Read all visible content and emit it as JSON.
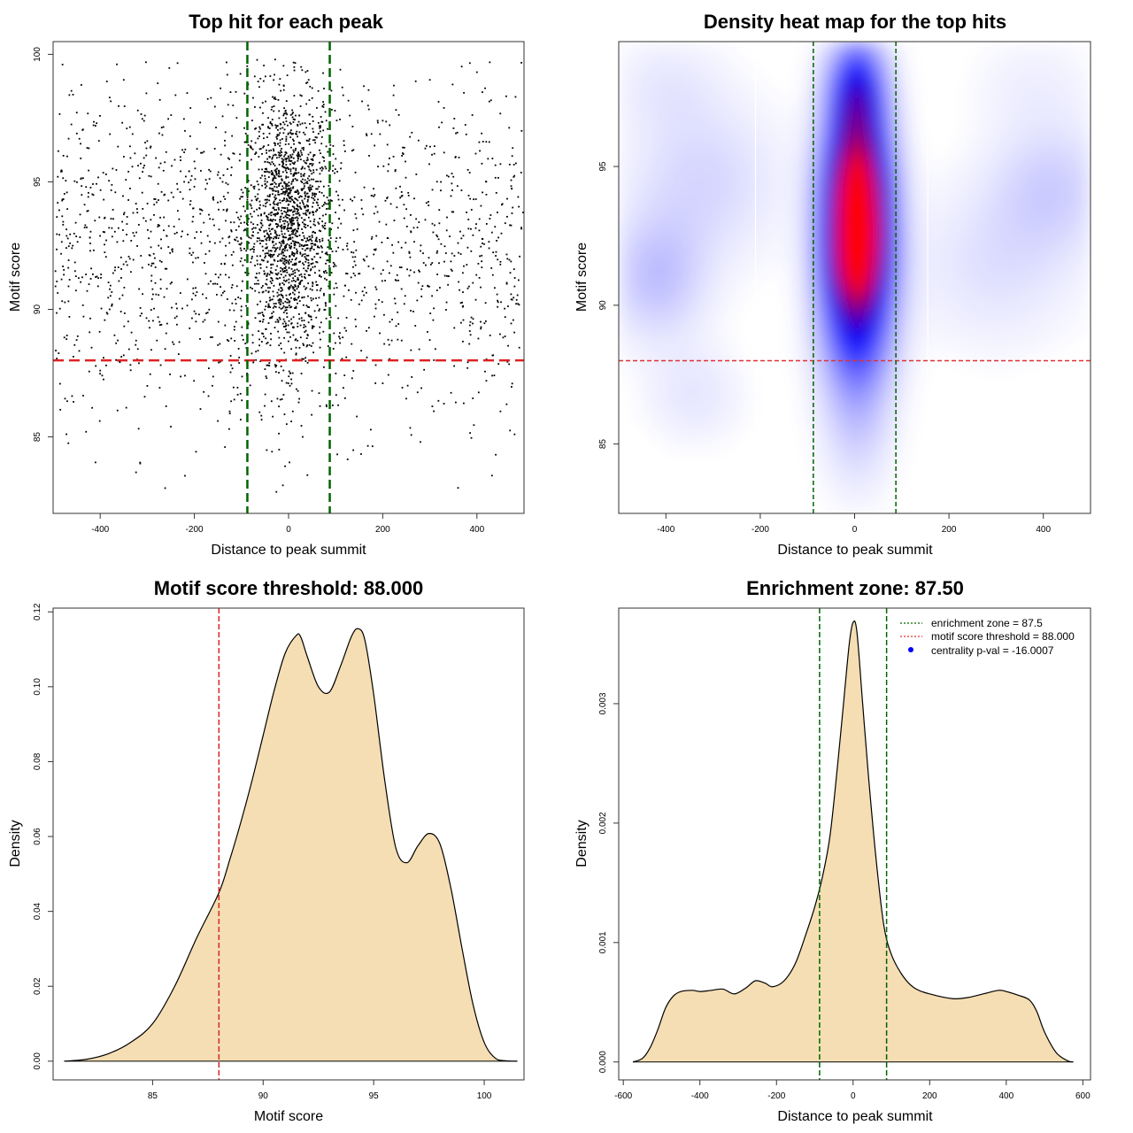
{
  "chart_data": [
    {
      "id": "scatter",
      "type": "scatter",
      "title": "Top hit for each peak",
      "xlabel": "Distance to peak summit",
      "ylabel": "Motif score",
      "xlim": [
        -500,
        500
      ],
      "ylim": [
        82,
        100.5
      ],
      "xticks": [
        -400,
        -200,
        0,
        200,
        400
      ],
      "yticks": [
        85,
        90,
        95,
        100
      ],
      "xtick_labels": [
        "-400",
        "-200",
        "0",
        "200",
        "400"
      ],
      "ytick_labels": [
        "85",
        "90",
        "95",
        "100"
      ],
      "threshold_y": 88,
      "zone_x": [
        -87.5,
        87.5
      ],
      "colors": {
        "points": "#000000",
        "threshold": "#dd2222",
        "zone": "#006400"
      },
      "point_density_note_free": true,
      "points_sampled": [
        [
          12,
          99.5
        ],
        [
          -30,
          99.2
        ],
        [
          40,
          98.9
        ],
        [
          -10,
          98.6
        ],
        [
          25,
          98.4
        ],
        [
          -55,
          98.1
        ],
        [
          60,
          97.9
        ],
        [
          -5,
          97.7
        ],
        [
          15,
          97.6
        ],
        [
          -20,
          97.5
        ],
        [
          35,
          97.3
        ],
        [
          -40,
          97.1
        ],
        [
          5,
          96.9
        ],
        [
          -65,
          96.7
        ],
        [
          70,
          96.5
        ],
        [
          -15,
          96.3
        ],
        [
          20,
          96.1
        ],
        [
          -35,
          95.9
        ],
        [
          45,
          95.7
        ],
        [
          0,
          95.5
        ],
        [
          -25,
          95.3
        ],
        [
          30,
          95.1
        ],
        [
          -50,
          94.9
        ],
        [
          10,
          94.8
        ],
        [
          -8,
          94.6
        ],
        [
          55,
          94.5
        ],
        [
          -45,
          94.3
        ],
        [
          18,
          94.1
        ],
        [
          -2,
          93.9
        ],
        [
          38,
          93.7
        ],
        [
          -28,
          93.5
        ],
        [
          8,
          93.3
        ],
        [
          -60,
          93.1
        ],
        [
          50,
          92.9
        ],
        [
          -12,
          92.7
        ],
        [
          28,
          92.5
        ],
        [
          -38,
          92.3
        ],
        [
          3,
          92.1
        ],
        [
          -18,
          91.9
        ],
        [
          42,
          91.7
        ],
        [
          -52,
          91.5
        ],
        [
          14,
          91.3
        ],
        [
          -6,
          91.1
        ],
        [
          33,
          90.9
        ],
        [
          -42,
          90.7
        ],
        [
          22,
          90.5
        ],
        [
          -16,
          90.3
        ],
        [
          6,
          90.1
        ],
        [
          -32,
          89.9
        ],
        [
          48,
          89.7
        ],
        [
          -22,
          89.5
        ],
        [
          11,
          89.3
        ],
        [
          -3,
          89.1
        ],
        [
          26,
          88.9
        ],
        [
          -44,
          88.7
        ],
        [
          16,
          88.5
        ],
        [
          -9,
          88.3
        ],
        [
          36,
          88.1
        ],
        [
          -26,
          87.8
        ],
        [
          4,
          87.5
        ],
        [
          -14,
          87.2
        ],
        [
          20,
          86.8
        ],
        [
          -36,
          86.4
        ],
        [
          9,
          86.0
        ],
        [
          -4,
          85.5
        ],
        [
          30,
          85.0
        ],
        [
          -20,
          84.5
        ],
        [
          2,
          84.0
        ],
        [
          40,
          83.5
        ],
        [
          -12,
          83.1
        ],
        [
          -480,
          99.6
        ],
        [
          -440,
          98.8
        ],
        [
          -410,
          97.2
        ],
        [
          -470,
          96.0
        ],
        [
          -430,
          94.8
        ],
        [
          -390,
          93.6
        ],
        [
          -460,
          92.4
        ],
        [
          -420,
          91.2
        ],
        [
          -380,
          90.0
        ],
        [
          -450,
          88.8
        ],
        [
          -400,
          87.6
        ],
        [
          -470,
          86.4
        ],
        [
          -430,
          85.2
        ],
        [
          -410,
          84.0
        ],
        [
          -350,
          99.0
        ],
        [
          -320,
          97.8
        ],
        [
          -300,
          96.6
        ],
        [
          -340,
          95.4
        ],
        [
          -280,
          94.2
        ],
        [
          -330,
          93.0
        ],
        [
          -290,
          91.8
        ],
        [
          -310,
          90.6
        ],
        [
          -270,
          89.4
        ],
        [
          -350,
          88.2
        ],
        [
          -300,
          87.0
        ],
        [
          -260,
          86.2
        ],
        [
          -240,
          98.4
        ],
        [
          -220,
          97.0
        ],
        [
          -200,
          95.8
        ],
        [
          -230,
          94.6
        ],
        [
          -180,
          93.4
        ],
        [
          -210,
          92.2
        ],
        [
          -160,
          91.0
        ],
        [
          -190,
          89.8
        ],
        [
          -150,
          88.6
        ],
        [
          -220,
          87.4
        ],
        [
          -170,
          86.6
        ],
        [
          -250,
          85.4
        ],
        [
          -130,
          99.2
        ],
        [
          -120,
          96.8
        ],
        [
          -140,
          95.0
        ],
        [
          -110,
          93.8
        ],
        [
          -100,
          92.6
        ],
        [
          -130,
          90.4
        ],
        [
          -115,
          89.2
        ],
        [
          -105,
          87.9
        ],
        [
          -125,
          86.0
        ],
        [
          -135,
          84.6
        ],
        [
          110,
          99.4
        ],
        [
          130,
          97.6
        ],
        [
          120,
          96.2
        ],
        [
          140,
          94.4
        ],
        [
          105,
          93.2
        ],
        [
          125,
          91.4
        ],
        [
          150,
          90.2
        ],
        [
          115,
          88.9
        ],
        [
          135,
          87.3
        ],
        [
          145,
          85.8
        ],
        [
          170,
          98.6
        ],
        [
          200,
          97.4
        ],
        [
          190,
          95.6
        ],
        [
          230,
          94.0
        ],
        [
          210,
          92.8
        ],
        [
          180,
          91.6
        ],
        [
          240,
          90.8
        ],
        [
          220,
          89.6
        ],
        [
          260,
          88.4
        ],
        [
          200,
          87.1
        ],
        [
          250,
          86.5
        ],
        [
          280,
          84.8
        ],
        [
          300,
          99.0
        ],
        [
          330,
          97.9
        ],
        [
          310,
          96.4
        ],
        [
          350,
          95.2
        ],
        [
          320,
          93.9
        ],
        [
          360,
          92.6
        ],
        [
          340,
          91.3
        ],
        [
          370,
          90.1
        ],
        [
          300,
          88.8
        ],
        [
          380,
          87.7
        ],
        [
          330,
          86.3
        ],
        [
          360,
          83.0
        ],
        [
          400,
          99.3
        ],
        [
          430,
          98.2
        ],
        [
          410,
          96.9
        ],
        [
          450,
          95.7
        ],
        [
          420,
          94.5
        ],
        [
          470,
          93.3
        ],
        [
          440,
          92.1
        ],
        [
          480,
          90.9
        ],
        [
          460,
          89.7
        ],
        [
          490,
          88.5
        ],
        [
          420,
          87.2
        ],
        [
          450,
          86.0
        ],
        [
          480,
          85.1
        ],
        [
          440,
          84.3
        ],
        [
          -490,
          95.2
        ],
        [
          -495,
          91.5
        ],
        [
          495,
          97.0
        ],
        [
          498,
          93.8
        ]
      ]
    },
    {
      "id": "heatmap",
      "type": "heatmap",
      "title": "Density heat map for the top hits",
      "xlabel": "Distance to peak summit",
      "ylabel": "Motif score",
      "xlim": [
        -500,
        500
      ],
      "ylim": [
        82.5,
        99.5
      ],
      "xticks": [
        -400,
        -200,
        0,
        200,
        400
      ],
      "yticks": [
        85,
        90,
        95
      ],
      "xtick_labels": [
        "-400",
        "-200",
        "0",
        "200",
        "400"
      ],
      "ytick_labels": [
        "85",
        "90",
        "95"
      ],
      "threshold_y": 88,
      "zone_x": [
        -87.5,
        87.5
      ],
      "white_lines_x": [
        -210,
        155
      ],
      "colors": {
        "low": "#ffffff",
        "mid": "#0000ff",
        "high": "#ff0000",
        "threshold": "#dd3333",
        "zone": "#006400"
      },
      "hotspots": [
        {
          "x": 5,
          "y": 94.3,
          "weight": 1.0,
          "sx": 45,
          "sy": 1.6
        },
        {
          "x": 5,
          "y": 91.8,
          "weight": 0.85,
          "sx": 45,
          "sy": 1.4
        },
        {
          "x": 5,
          "y": 97.6,
          "weight": 0.55,
          "sx": 40,
          "sy": 1.3
        },
        {
          "x": 5,
          "y": 89.5,
          "weight": 0.4,
          "sx": 50,
          "sy": 1.6
        },
        {
          "x": 5,
          "y": 86.5,
          "weight": 0.12,
          "sx": 50,
          "sy": 2.0
        },
        {
          "x": -420,
          "y": 91.0,
          "weight": 0.12,
          "sx": 70,
          "sy": 1.5
        },
        {
          "x": -320,
          "y": 94.5,
          "weight": 0.08,
          "sx": 110,
          "sy": 2.0
        },
        {
          "x": 420,
          "y": 94.3,
          "weight": 0.09,
          "sx": 90,
          "sy": 1.6
        },
        {
          "x": 300,
          "y": 91.5,
          "weight": 0.06,
          "sx": 120,
          "sy": 2.0
        },
        {
          "x": -340,
          "y": 86.8,
          "weight": 0.05,
          "sx": 70,
          "sy": 1.2
        },
        {
          "x": -400,
          "y": 98.0,
          "weight": 0.04,
          "sx": 80,
          "sy": 1.2
        },
        {
          "x": 380,
          "y": 98.0,
          "weight": 0.03,
          "sx": 90,
          "sy": 1.2
        }
      ]
    },
    {
      "id": "score-density",
      "type": "area",
      "title": "Motif score threshold: 88.000",
      "xlabel": "Motif score",
      "ylabel": "Density",
      "xlim": [
        80.5,
        101.8
      ],
      "ylim": [
        -0.005,
        0.121
      ],
      "xticks": [
        85,
        90,
        95,
        100
      ],
      "yticks": [
        0.0,
        0.02,
        0.04,
        0.06,
        0.08,
        0.1,
        0.12
      ],
      "xtick_labels": [
        "85",
        "90",
        "95",
        "100"
      ],
      "ytick_labels": [
        "0.00",
        "0.02",
        "0.04",
        "0.06",
        "0.08",
        "0.10",
        "0.12"
      ],
      "threshold_x": 88,
      "colors": {
        "fill": "#f5deb3",
        "line": "#000000",
        "threshold": "#dd2222"
      },
      "x": [
        81.0,
        82.0,
        83.0,
        84.0,
        85.0,
        86.0,
        87.0,
        88.0,
        88.5,
        89.0,
        89.5,
        90.0,
        90.5,
        91.0,
        91.5,
        91.7,
        92.0,
        92.5,
        93.0,
        93.5,
        94.0,
        94.3,
        94.6,
        95.0,
        95.5,
        96.0,
        96.5,
        97.0,
        97.5,
        98.0,
        98.5,
        99.0,
        99.5,
        100.0,
        100.5,
        101.0,
        101.5
      ],
      "y": [
        0.0,
        0.0005,
        0.002,
        0.005,
        0.01,
        0.02,
        0.033,
        0.045,
        0.054,
        0.064,
        0.075,
        0.087,
        0.099,
        0.109,
        0.1137,
        0.1133,
        0.108,
        0.1,
        0.0986,
        0.1055,
        0.1135,
        0.1155,
        0.1125,
        0.098,
        0.075,
        0.057,
        0.053,
        0.0575,
        0.0608,
        0.058,
        0.046,
        0.03,
        0.015,
        0.005,
        0.0008,
        0.0001,
        0.0
      ]
    },
    {
      "id": "distance-density",
      "type": "area",
      "title": "Enrichment zone: 87.50",
      "xlabel": "Distance to peak summit",
      "ylabel": "Density",
      "xlim": [
        -612,
        620
      ],
      "ylim": [
        -0.00015,
        0.0038
      ],
      "xticks": [
        -600,
        -400,
        -200,
        0,
        200,
        400,
        600
      ],
      "yticks": [
        0.0,
        0.001,
        0.002,
        0.003
      ],
      "xtick_labels": [
        "-600",
        "-400",
        "-200",
        "0",
        "200",
        "400",
        "600"
      ],
      "ytick_labels": [
        "0.000",
        "0.001",
        "0.002",
        "0.003"
      ],
      "zone_x": [
        -87.5,
        87.5
      ],
      "colors": {
        "fill": "#f5deb3",
        "line": "#000000",
        "zone": "#006400",
        "threshold": "#dd3333",
        "pval": "#0000ff"
      },
      "x": [
        -575,
        -550,
        -530,
        -510,
        -490,
        -470,
        -450,
        -420,
        -400,
        -370,
        -340,
        -310,
        -280,
        -255,
        -230,
        -210,
        -180,
        -150,
        -120,
        -100,
        -80,
        -60,
        -40,
        -25,
        -10,
        0,
        10,
        25,
        40,
        60,
        80,
        100,
        130,
        160,
        200,
        260,
        300,
        340,
        380,
        400,
        430,
        460,
        480,
        500,
        530,
        560,
        575
      ],
      "y": [
        0.0,
        3e-05,
        0.00012,
        0.00027,
        0.00045,
        0.00055,
        0.00059,
        0.0006,
        0.00059,
        0.0006,
        0.00061,
        0.00057,
        0.00062,
        0.00068,
        0.00066,
        0.00063,
        0.00068,
        0.00083,
        0.0011,
        0.0013,
        0.00155,
        0.0019,
        0.0025,
        0.003,
        0.0035,
        0.00368,
        0.0036,
        0.003,
        0.0024,
        0.0017,
        0.00115,
        0.0009,
        0.00072,
        0.00062,
        0.00057,
        0.00053,
        0.00054,
        0.00057,
        0.0006,
        0.00059,
        0.00056,
        0.00052,
        0.00042,
        0.00025,
        8e-05,
        1e-05,
        0.0
      ]
    }
  ],
  "legend": {
    "enrichment_zone": "enrichment zone = 87.5",
    "motif_threshold": "motif score threshold = 88.000",
    "centrality_pval": "centrality p-val = -16.0007"
  }
}
